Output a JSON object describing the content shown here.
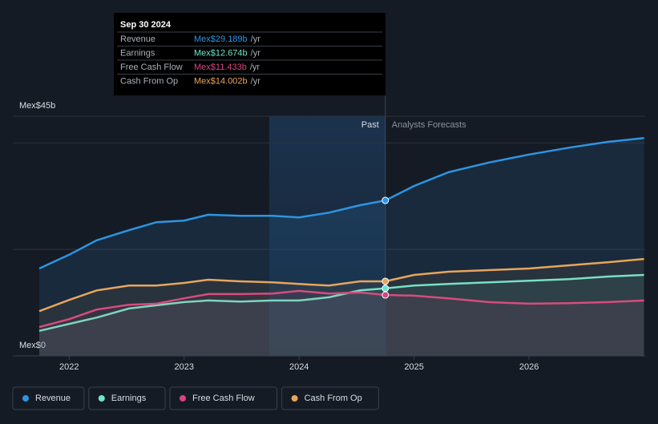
{
  "chart_data": {
    "type": "line",
    "x": [
      2021.74,
      2022,
      2022.24,
      2022.52,
      2022.76,
      2023,
      2023.21,
      2023.49,
      2023.77,
      2024,
      2024.26,
      2024.53,
      2024.75,
      2025,
      2025.3,
      2025.65,
      2026,
      2026.35,
      2026.69,
      2027
    ],
    "series": [
      {
        "name": "Revenue",
        "color": "#2d95e3",
        "values": [
          16.4,
          19.0,
          21.7,
          23.6,
          25.1,
          25.4,
          26.5,
          26.3,
          26.3,
          26.0,
          26.9,
          28.3,
          29.189,
          31.9,
          34.5,
          36.3,
          37.8,
          39.1,
          40.2,
          40.9
        ]
      },
      {
        "name": "Earnings",
        "color": "#6ee5cc",
        "values": [
          4.7,
          6.0,
          7.2,
          8.9,
          9.5,
          10.1,
          10.4,
          10.2,
          10.4,
          10.4,
          11.0,
          12.3,
          12.674,
          13.2,
          13.5,
          13.8,
          14.1,
          14.4,
          14.9,
          15.2
        ]
      },
      {
        "name": "Free Cash Flow",
        "color": "#d6457f",
        "values": [
          5.4,
          6.9,
          8.7,
          9.6,
          9.8,
          10.8,
          11.6,
          11.6,
          11.7,
          12.2,
          11.7,
          11.9,
          11.433,
          11.3,
          10.8,
          10.1,
          9.8,
          9.9,
          10.1,
          10.4
        ]
      },
      {
        "name": "Cash From Op",
        "color": "#e8a55c",
        "values": [
          8.4,
          10.5,
          12.3,
          13.2,
          13.2,
          13.7,
          14.3,
          14.0,
          13.8,
          13.5,
          13.2,
          14.0,
          14.002,
          15.2,
          15.8,
          16.1,
          16.4,
          17.0,
          17.6,
          18.2
        ]
      }
    ],
    "xlim": [
      2021.51,
      2027.01
    ],
    "xticks": [
      2022,
      2023,
      2024,
      2025,
      2026
    ],
    "ylim": [
      0,
      45
    ],
    "yticks": [
      {
        "value": 0,
        "label": "Mex$0"
      },
      {
        "value": 20,
        "label": null
      },
      {
        "value": 40,
        "label": null
      },
      {
        "value": 45,
        "label": "Mex$45b"
      }
    ],
    "grid": true,
    "past_end": 2024.75,
    "highlight_start": 2023.74,
    "past_label": "Past",
    "forecast_label": "Analysts Forecasts",
    "tooltip": {
      "date": "Sep 30 2024",
      "unit": "/yr",
      "values": [
        "Mex$29.189b",
        "Mex$12.674b",
        "Mex$11.433b",
        "Mex$14.002b"
      ]
    },
    "legend_position": "bottom-left"
  }
}
